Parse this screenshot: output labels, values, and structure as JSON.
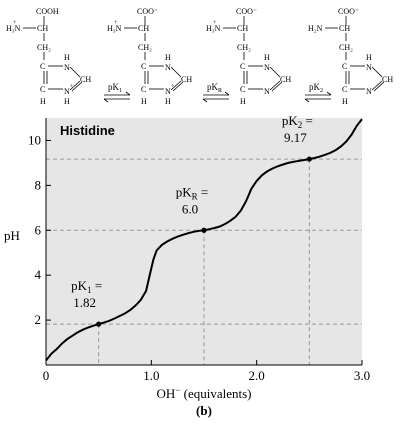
{
  "structures": {
    "species": [
      {
        "acid": "COOH",
        "amine": "H₃N",
        "amine_charge": "+",
        "ch": "CH",
        "ch2": "CH₂",
        "ring_c": "C",
        "nh_top": "H",
        "n_top": "N",
        "ch_ring": "CH",
        "nh_bottom": "H",
        "n_bottom": "N",
        "ring_c_bottom": "C",
        "h_bottom_c": "H",
        "ring_charge": "+"
      },
      {
        "acid": "COO⁻",
        "amine": "H₃N",
        "amine_charge": "+",
        "ch": "CH",
        "ch2": "CH₂",
        "ring_c": "C",
        "nh_top": "H",
        "n_top": "N",
        "ch_ring": "CH",
        "nh_bottom": "H",
        "n_bottom": "N",
        "ring_c_bottom": "C",
        "h_bottom_c": "H",
        "ring_charge": "+"
      },
      {
        "acid": "COO⁻",
        "amine": "H₃N",
        "amine_charge": "+",
        "ch": "CH",
        "ch2": "CH₂",
        "ring_c": "C",
        "nh_top": "H",
        "n_top": "N",
        "ch_ring": "CH",
        "nh_bottom": "",
        "n_bottom": "N",
        "ring_c_bottom": "C",
        "h_bottom_c": "H",
        "ring_charge": ""
      },
      {
        "acid": "COO⁻",
        "amine": "H₂N",
        "amine_charge": "",
        "ch": "CH",
        "ch2": "CH₂",
        "ring_c": "C",
        "nh_top": "H",
        "n_top": "N",
        "ch_ring": "CH",
        "nh_bottom": "",
        "n_bottom": "N",
        "ring_c_bottom": "C",
        "h_bottom_c": "H",
        "ring_charge": ""
      }
    ],
    "equilibria": [
      {
        "label_main": "pK",
        "label_sub": "1"
      },
      {
        "label_main": "pK",
        "label_sub": "R"
      },
      {
        "label_main": "pK",
        "label_sub": "2"
      }
    ]
  },
  "chart_data": {
    "type": "line",
    "title": "Histidine",
    "xlabel_main": "OH",
    "xlabel_sup": "−",
    "xlabel_rest": " (equivalents)",
    "ylabel": "pH",
    "xlim": [
      0,
      3.0
    ],
    "ylim": [
      0,
      11
    ],
    "xticks": [
      0,
      1.0,
      2.0,
      3.0
    ],
    "xtick_labels": [
      "0",
      "1.0",
      "2.0",
      "3.0"
    ],
    "yticks": [
      2,
      4,
      6,
      8,
      10
    ],
    "ytick_labels": [
      "2",
      "4",
      "6",
      "8",
      "10"
    ],
    "background": "#e6e6e6",
    "grid": false,
    "series": [
      {
        "x": [
          0.0,
          0.05,
          0.1,
          0.15,
          0.2,
          0.25,
          0.3,
          0.35,
          0.4,
          0.45,
          0.5,
          0.55,
          0.6,
          0.65,
          0.7,
          0.75,
          0.8,
          0.85,
          0.9,
          0.95,
          0.98,
          1.0,
          1.02,
          1.05,
          1.1,
          1.15,
          1.2,
          1.25,
          1.3,
          1.35,
          1.4,
          1.45,
          1.5,
          1.55,
          1.6,
          1.65,
          1.7,
          1.75,
          1.8,
          1.85,
          1.9,
          1.95,
          2.0,
          2.05,
          2.1,
          2.15,
          2.2,
          2.25,
          2.3,
          2.35,
          2.4,
          2.45,
          2.5,
          2.55,
          2.6,
          2.65,
          2.7,
          2.75,
          2.8,
          2.85,
          2.9,
          2.95,
          3.0
        ],
        "y": [
          0.2,
          0.5,
          0.7,
          0.95,
          1.15,
          1.3,
          1.45,
          1.57,
          1.67,
          1.75,
          1.82,
          1.89,
          1.97,
          2.07,
          2.18,
          2.3,
          2.45,
          2.65,
          2.9,
          3.3,
          3.9,
          4.3,
          4.7,
          5.1,
          5.35,
          5.5,
          5.62,
          5.72,
          5.8,
          5.87,
          5.93,
          5.97,
          6.0,
          6.05,
          6.1,
          6.17,
          6.28,
          6.42,
          6.6,
          6.88,
          7.3,
          7.85,
          8.2,
          8.45,
          8.62,
          8.75,
          8.85,
          8.93,
          9.0,
          9.05,
          9.09,
          9.13,
          9.17,
          9.22,
          9.28,
          9.36,
          9.45,
          9.57,
          9.73,
          9.95,
          10.25,
          10.65,
          10.95
        ]
      }
    ],
    "annotations": [
      {
        "x": 0.5,
        "y": 1.82,
        "label_main": "pK",
        "label_sub": "1",
        "label_eq": " =",
        "value": "1.82"
      },
      {
        "x": 1.5,
        "y": 6.0,
        "label_main": "pK",
        "label_sub": "R",
        "label_eq": " =",
        "value": "6.0"
      },
      {
        "x": 2.5,
        "y": 9.17,
        "label_main": "pK",
        "label_sub": "2",
        "label_eq": " =",
        "value": "9.17"
      }
    ],
    "panel_label": "(b)"
  }
}
